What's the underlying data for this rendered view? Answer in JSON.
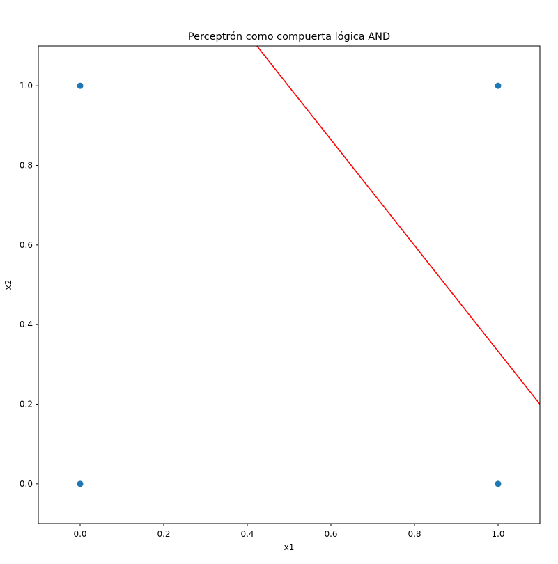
{
  "chart_data": {
    "type": "scatter",
    "title": "Perceptrón como compuerta lógica AND",
    "xlabel": "x1",
    "ylabel": "x2",
    "xlim": [
      -0.1,
      1.1
    ],
    "ylim": [
      -0.1,
      1.1
    ],
    "xticks": [
      "0.0",
      "0.2",
      "0.4",
      "0.6",
      "0.8",
      "1.0"
    ],
    "yticks": [
      "0.0",
      "0.2",
      "0.4",
      "0.6",
      "0.8",
      "1.0"
    ],
    "grid": false,
    "points": [
      {
        "x": 0,
        "y": 0
      },
      {
        "x": 0,
        "y": 1
      },
      {
        "x": 1,
        "y": 0
      },
      {
        "x": 1,
        "y": 1
      }
    ],
    "point_color": "#1f77b4",
    "decision_line": {
      "color": "#ff0000",
      "x": [
        0.423,
        1.1
      ],
      "y": [
        1.1,
        0.2
      ]
    }
  }
}
